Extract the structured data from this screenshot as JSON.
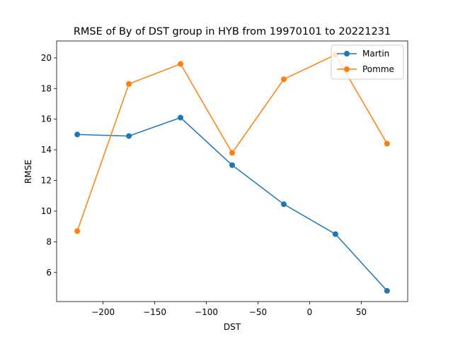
{
  "chart_data": {
    "type": "line",
    "title": "RMSE of By of DST group in HYB from 19970101 to 20221231",
    "xlabel": "DST",
    "ylabel": "RMSE",
    "xlim": [
      -245,
      95
    ],
    "ylim": [
      4.1,
      21.1
    ],
    "xticks": [
      -200,
      -150,
      -100,
      -50,
      0,
      50
    ],
    "xtick_labels": [
      "−200",
      "−150",
      "−100",
      "−50",
      "0",
      "50"
    ],
    "yticks": [
      6,
      8,
      10,
      12,
      14,
      16,
      18,
      20
    ],
    "ytick_labels": [
      "6",
      "8",
      "10",
      "12",
      "14",
      "16",
      "18",
      "20"
    ],
    "grid": false,
    "legend_position": "top-right",
    "x": [
      -225,
      -175,
      -125,
      -75,
      -25,
      25,
      75
    ],
    "series": [
      {
        "name": "Martin",
        "color": "#1f77b4",
        "marker": "circle",
        "values": [
          15.0,
          14.9,
          16.1,
          13.0,
          10.45,
          8.5,
          4.8
        ]
      },
      {
        "name": "Pomme",
        "color": "#ff7f0e",
        "marker": "circle",
        "values": [
          8.7,
          18.3,
          19.6,
          13.8,
          18.6,
          20.2,
          14.4
        ]
      }
    ]
  }
}
